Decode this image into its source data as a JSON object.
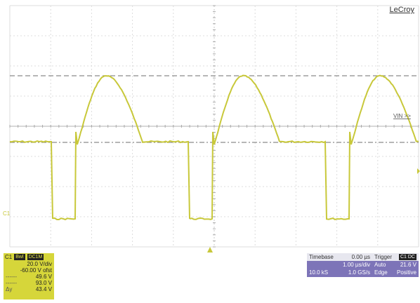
{
  "brand": "LeCroy",
  "colors": {
    "trace": "#c8c83a",
    "grid": "#b8b8b8",
    "ch1_box": "#d6d63a",
    "panel": "#7d74b8"
  },
  "cursor_label": "VIN >>",
  "channel": {
    "name": "C1",
    "tags": [
      "Bwl",
      "DC1M"
    ],
    "vdiv": "20.0 V/div",
    "offset": "-60.00 V ofst",
    "rows": [
      {
        "label": "------",
        "value": "49.6 V"
      },
      {
        "label": "------",
        "value": "93.0 V"
      },
      {
        "label": "Δy",
        "value": "43.4 V"
      }
    ]
  },
  "timebase": {
    "title": "Timebase",
    "delay": "0.00 µs",
    "tdiv": "1.00 µs/div",
    "samples": "10.0 kS",
    "rate": "1.0 GS/s"
  },
  "trigger": {
    "title": "Trigger",
    "tag": "C1 DC",
    "mode": "Auto",
    "level": "21.6 V",
    "type": "Edge",
    "slope": "Positive"
  }
}
